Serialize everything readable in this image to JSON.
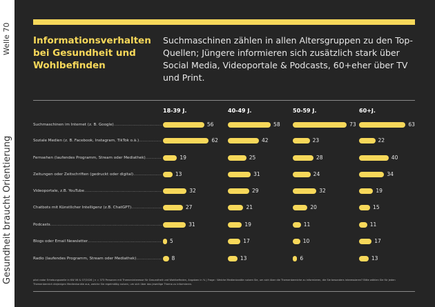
{
  "side": {
    "wave": "Welle 70",
    "slogan": "Gesundheit braucht Orientierung"
  },
  "header": {
    "title": "Informationsverhalten bei Gesundheit und Wohlbefinden",
    "subtitle": "Suchmaschinen zählen in allen Altersgruppen zu den Top-Quellen; Jüngere informieren sich zusätzlich stark über Social Media, Videoportale & Podcasts, 60+eher über TV und Print."
  },
  "colors": {
    "accent": "#f7d85a",
    "background": "#252525"
  },
  "chart_data": {
    "type": "bar",
    "orientation": "horizontal",
    "unit": "%",
    "categories": [
      "Suchmaschinen im Internet (z. B. Google)",
      "Soziale Medien (z. B. Facebook, Instagram, TikTok o.ä.)",
      "Fernsehen (laufendes Programm, Stream oder Mediathek)",
      "Zeitungen oder Zeitschriften (gedruckt oder digital)",
      "Videoportale, z.B. YouTube",
      "Chatbots mit Künstlicher Intelligenz (z.B. ChatGPT)",
      "Podcasts",
      "Blogs oder Email Newsletter",
      "Radio (laufendes Programm, Stream oder Mediathek)"
    ],
    "series": [
      {
        "name": "18-39 J.",
        "values": [
          56,
          62,
          19,
          13,
          32,
          27,
          31,
          5,
          8
        ]
      },
      {
        "name": "40-49 J.",
        "values": [
          58,
          42,
          25,
          31,
          29,
          21,
          19,
          17,
          13
        ]
      },
      {
        "name": "50-59 J.",
        "values": [
          73,
          23,
          28,
          24,
          32,
          20,
          11,
          10,
          6
        ]
      },
      {
        "name": "60+J.",
        "values": [
          63,
          22,
          40,
          34,
          19,
          15,
          11,
          17,
          13
        ]
      }
    ]
  },
  "footer": "pilot radar Erhebungswelle in KW 06 & 07/2026 | n = 373 Personen mit Themeninteresse für Gesundheit und Wohlbefinden, Angaben in % | Frage : Welche Medienkanäle nutzen Sie, um sich über die Themenbereiche zu informieren, die Sie besonders interessieren? Bitte wählen Sie für jeden Themenbereich diejenigen Medienkanäle aus, welche Sie regelmäßig nutzen, um sich über das jeweilige Thema zu informieren."
}
